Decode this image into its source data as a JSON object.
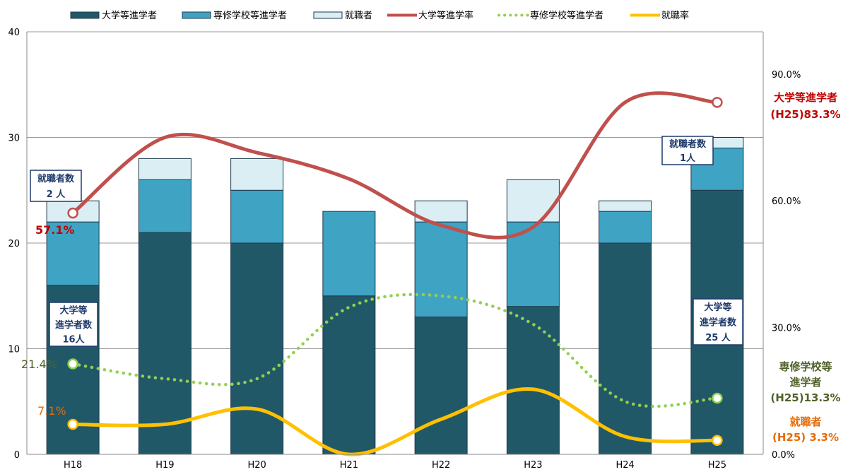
{
  "chart_data": {
    "type": "bar",
    "stacked": true,
    "categories": [
      "H18",
      "H19",
      "H20",
      "H21",
      "H22",
      "H23",
      "H24",
      "H25"
    ],
    "series": [
      {
        "name": "大学等進学者",
        "kind": "bar",
        "axis": "left",
        "color": "#215868",
        "values": [
          16,
          21,
          20,
          15,
          13,
          14,
          20,
          25
        ]
      },
      {
        "name": "専修学校等進学者",
        "kind": "bar",
        "axis": "left",
        "color": "#3fa3c4",
        "values": [
          6,
          5,
          5,
          8,
          9,
          8,
          3,
          4
        ]
      },
      {
        "name": "就職者",
        "kind": "bar",
        "axis": "left",
        "color": "#dbeef4",
        "values": [
          2,
          2,
          3,
          0,
          2,
          4,
          1,
          1
        ]
      },
      {
        "name": "大学等進学率",
        "kind": "line",
        "axis": "right",
        "color": "#c0504d",
        "style": "solid",
        "values": [
          57.1,
          75.0,
          71.4,
          65.2,
          54.2,
          53.8,
          83.3,
          83.3
        ]
      },
      {
        "name": "専修学校等進学者",
        "kind": "line",
        "axis": "right",
        "color": "#92d050",
        "style": "dotted",
        "values": [
          21.4,
          17.9,
          17.9,
          34.8,
          37.5,
          30.8,
          12.5,
          13.3
        ]
      },
      {
        "name": "就職率",
        "kind": "line",
        "axis": "right",
        "color": "#ffc000",
        "style": "solid",
        "values": [
          7.1,
          7.1,
          10.7,
          0.0,
          8.3,
          15.4,
          4.2,
          3.3
        ]
      }
    ],
    "y_left": {
      "min": 0,
      "max": 40,
      "ticks": [
        "0",
        "10",
        "20",
        "30",
        "40"
      ]
    },
    "y_right": {
      "min": 0,
      "max": 100,
      "ticks": [
        "0.0%",
        "30.0%",
        "60.0%",
        "90.0%"
      ]
    },
    "legend_position": "top",
    "grid": true,
    "annotations": {
      "h18_employed_box": [
        "就職者数",
        "2 人"
      ],
      "h18_univ_rate": "57.1%",
      "h18_univ_box": [
        "大学等",
        "進学者数",
        "16人"
      ],
      "h18_vocational_rate": "21.4%",
      "h18_employed_rate": "7.1%",
      "h25_employed_box": [
        "就職者数",
        "1人"
      ],
      "h25_univ_box": [
        "大学等",
        "進学者数",
        "25 人"
      ],
      "h25_univ_label": [
        "大学等進学者",
        "(H25)83.3%"
      ],
      "h25_vocational_label": [
        "専修学校等",
        "進学者",
        "(H25)13.3%"
      ],
      "h25_employed_label": [
        "就職者",
        "(H25) 3.3%"
      ]
    }
  }
}
